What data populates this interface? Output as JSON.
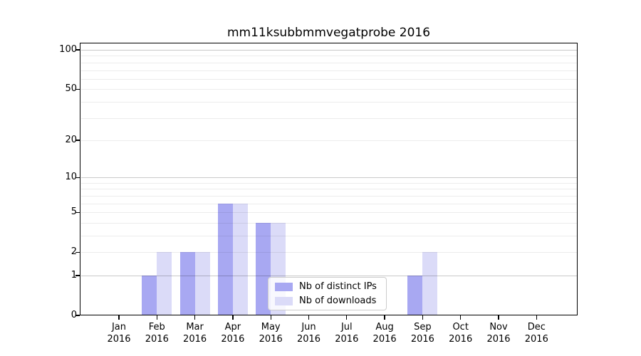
{
  "chart_data": {
    "type": "bar",
    "title": "mm11ksubbmmvegatprobe 2016",
    "x_tick_months": [
      "Jan",
      "Feb",
      "Mar",
      "Apr",
      "May",
      "Jun",
      "Jul",
      "Aug",
      "Sep",
      "Oct",
      "Nov",
      "Dec"
    ],
    "x_tick_year": "2016",
    "y_ticks": [
      0,
      1,
      2,
      5,
      10,
      20,
      50,
      100
    ],
    "y_scale": "log1p",
    "ylim": [
      0,
      101.5
    ],
    "grid": "horizontal, minor lines at 2-9 and 20-90, major lines at 1, 10, 100",
    "minor_grid_values": [
      2,
      3,
      4,
      5,
      6,
      7,
      8,
      9,
      20,
      30,
      40,
      50,
      60,
      70,
      80,
      90
    ],
    "major_grid_values": [
      1,
      10,
      100
    ],
    "series": [
      {
        "name": "Nb of distinct IPs",
        "color": "#a8a8f2",
        "values": [
          0,
          1,
          2,
          6,
          4,
          0,
          0,
          0,
          1,
          0,
          0,
          0
        ]
      },
      {
        "name": "Nb of downloads",
        "color": "#dbdbf8",
        "values": [
          0,
          2,
          2,
          6,
          4,
          0,
          0,
          0,
          2,
          0,
          0,
          0
        ]
      }
    ],
    "legend_position": "lower center-right inside plot"
  }
}
